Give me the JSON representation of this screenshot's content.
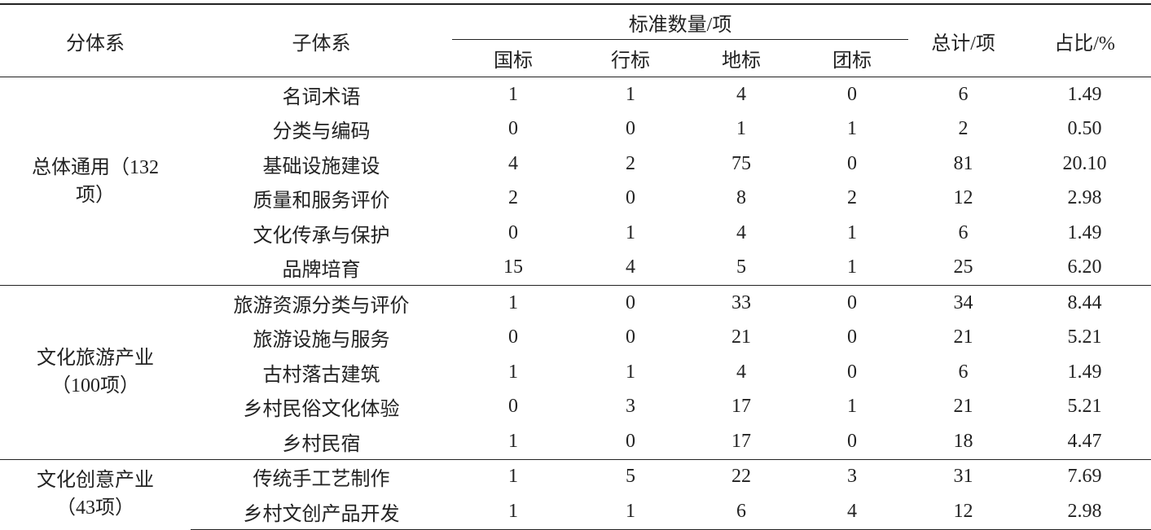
{
  "header": {
    "group": "分体系",
    "subsystem": "子体系",
    "standards": "标准数量/项",
    "standard_types": [
      "国标",
      "行标",
      "地标",
      "团标"
    ],
    "total": "总计/项",
    "share": "占比/%"
  },
  "groups": [
    {
      "label_lines": [
        "总体通用（132",
        "项）"
      ],
      "rows": [
        {
          "name": "名词术语",
          "counts": [
            "1",
            "1",
            "4",
            "0"
          ],
          "total": "6",
          "share": "1.49"
        },
        {
          "name": "分类与编码",
          "counts": [
            "0",
            "0",
            "1",
            "1"
          ],
          "total": "2",
          "share": "0.50"
        },
        {
          "name": "基础设施建设",
          "counts": [
            "4",
            "2",
            "75",
            "0"
          ],
          "total": "81",
          "share": "20.10"
        },
        {
          "name": "质量和服务评价",
          "counts": [
            "2",
            "0",
            "8",
            "2"
          ],
          "total": "12",
          "share": "2.98"
        },
        {
          "name": "文化传承与保护",
          "counts": [
            "0",
            "1",
            "4",
            "1"
          ],
          "total": "6",
          "share": "1.49"
        },
        {
          "name": "品牌培育",
          "counts": [
            "15",
            "4",
            "5",
            "1"
          ],
          "total": "25",
          "share": "6.20"
        }
      ]
    },
    {
      "label_lines": [
        "文化旅游产业",
        "（100项）"
      ],
      "rows": [
        {
          "name": "旅游资源分类与评价",
          "counts": [
            "1",
            "0",
            "33",
            "0"
          ],
          "total": "34",
          "share": "8.44"
        },
        {
          "name": "旅游设施与服务",
          "counts": [
            "0",
            "0",
            "21",
            "0"
          ],
          "total": "21",
          "share": "5.21"
        },
        {
          "name": "古村落古建筑",
          "counts": [
            "1",
            "1",
            "4",
            "0"
          ],
          "total": "6",
          "share": "1.49"
        },
        {
          "name": "乡村民俗文化体验",
          "counts": [
            "0",
            "3",
            "17",
            "1"
          ],
          "total": "21",
          "share": "5.21"
        },
        {
          "name": "乡村民宿",
          "counts": [
            "1",
            "0",
            "17",
            "0"
          ],
          "total": "18",
          "share": "4.47"
        }
      ]
    },
    {
      "label_lines": [
        "文化创意产业",
        "（43项）"
      ],
      "rows": [
        {
          "name": "传统手工艺制作",
          "counts": [
            "1",
            "5",
            "22",
            "3"
          ],
          "total": "31",
          "share": "7.69"
        },
        {
          "name": "乡村文创产品开发",
          "counts": [
            "1",
            "1",
            "6",
            "4"
          ],
          "total": "12",
          "share": "2.98"
        }
      ]
    }
  ]
}
